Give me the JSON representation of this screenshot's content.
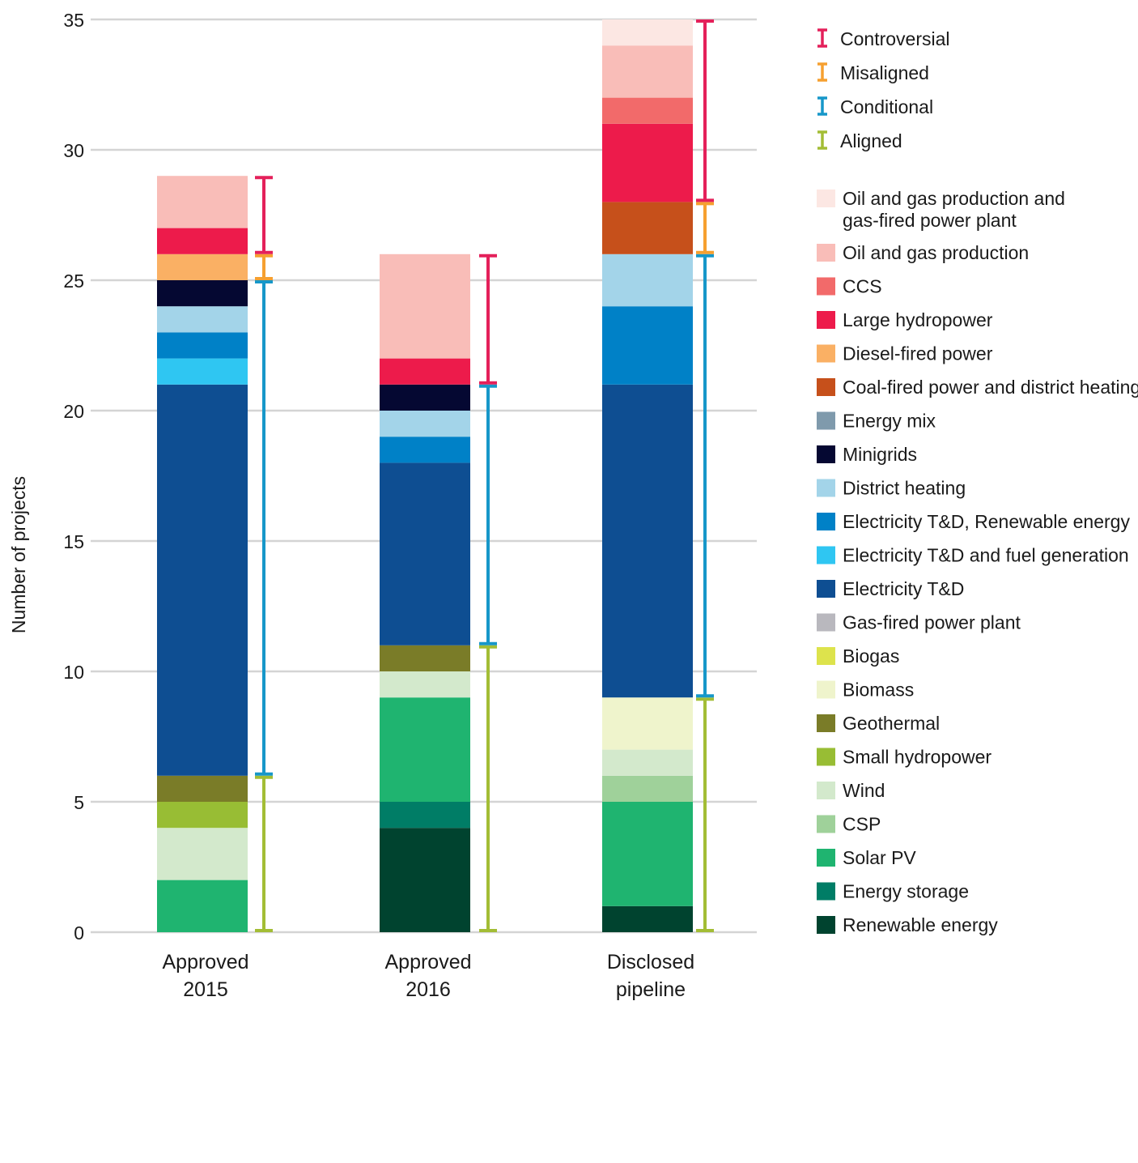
{
  "chart_data": {
    "type": "bar",
    "stacked": true,
    "title": "",
    "xlabel": "",
    "ylabel": "Number of projects",
    "ylim": [
      0,
      35
    ],
    "yticks": [
      0,
      5,
      10,
      15,
      20,
      25,
      30,
      35
    ],
    "grid": true,
    "legend_position": "right",
    "categories": [
      [
        "Approved",
        "2015"
      ],
      [
        "Approved",
        "2016"
      ],
      [
        "Disclosed",
        "pipeline"
      ]
    ],
    "series": [
      {
        "name": "Renewable energy",
        "color": "#00432f",
        "values": [
          0,
          4,
          1
        ]
      },
      {
        "name": "Energy storage",
        "color": "#007d66",
        "values": [
          0,
          1,
          0
        ]
      },
      {
        "name": "Solar PV",
        "color": "#1fb470",
        "values": [
          2,
          4,
          4
        ]
      },
      {
        "name": "CSP",
        "color": "#9fd19a",
        "values": [
          0,
          0,
          1
        ]
      },
      {
        "name": "Wind",
        "color": "#d3e9cc",
        "values": [
          2,
          1,
          1
        ]
      },
      {
        "name": "Small hydropower",
        "color": "#98bd34",
        "values": [
          1,
          0,
          0
        ]
      },
      {
        "name": "Geothermal",
        "color": "#7a7c28",
        "values": [
          1,
          1,
          0
        ]
      },
      {
        "name": "Biomass",
        "color": "#eff4cc",
        "values": [
          0,
          0,
          2
        ]
      },
      {
        "name": "Biogas",
        "color": "#dde34c",
        "values": [
          0,
          0,
          0
        ]
      },
      {
        "name": "Gas-fired power plant",
        "color": "#b9b8be",
        "values": [
          0,
          0,
          0
        ]
      },
      {
        "name": "Electricity T&D",
        "color": "#0e4e92",
        "values": [
          15,
          7,
          12
        ]
      },
      {
        "name": "Electricity T&D and fuel generation",
        "color": "#2fc6f2",
        "values": [
          1,
          0,
          0
        ]
      },
      {
        "name": "Electricity T&D, Renewable energy",
        "color": "#0081c7",
        "values": [
          1,
          1,
          3
        ]
      },
      {
        "name": "District heating",
        "color": "#a3d4e9",
        "values": [
          1,
          1,
          2
        ]
      },
      {
        "name": "Minigrids",
        "color": "#050832",
        "values": [
          1,
          1,
          0
        ]
      },
      {
        "name": "Energy mix",
        "color": "#7f9aac",
        "values": [
          0,
          0,
          0
        ]
      },
      {
        "name": "Coal-fired power and district heating",
        "color": "#c6501b",
        "values": [
          0,
          0,
          2
        ]
      },
      {
        "name": "Diesel-fired power",
        "color": "#fab064",
        "values": [
          1,
          0,
          0
        ]
      },
      {
        "name": "Large hydropower",
        "color": "#ed1b4b",
        "values": [
          1,
          1,
          3
        ]
      },
      {
        "name": "CCS",
        "color": "#f26a6a",
        "values": [
          0,
          0,
          1
        ]
      },
      {
        "name": "Oil and gas production",
        "color": "#f9bdb8",
        "values": [
          2,
          4,
          2
        ]
      },
      {
        "name": "Oil and gas production and gas-fired power plant",
        "color": "#fce7e3",
        "values": [
          0,
          0,
          1
        ]
      }
    ],
    "alignment_ranges": [
      {
        "name": "Aligned",
        "color": "#a3bd35",
        "ranges": [
          [
            0,
            6
          ],
          [
            0,
            11
          ],
          [
            0,
            9
          ]
        ]
      },
      {
        "name": "Conditional",
        "color": "#1797c9",
        "ranges": [
          [
            6,
            25
          ],
          [
            11,
            21
          ],
          [
            9,
            26
          ]
        ]
      },
      {
        "name": "Misaligned",
        "color": "#f6a030",
        "ranges": [
          [
            25,
            26
          ],
          null,
          [
            26,
            28
          ]
        ]
      },
      {
        "name": "Controversial",
        "color": "#e4205a",
        "ranges": [
          [
            26,
            29
          ],
          [
            21,
            26
          ],
          [
            28,
            35
          ]
        ]
      }
    ],
    "legend_ranges": [
      "Controversial",
      "Misaligned",
      "Conditional",
      "Aligned"
    ],
    "legend_series": [
      {
        "label": [
          "Oil and gas production and",
          "gas-fired power plant"
        ],
        "color": "#fce7e3"
      },
      {
        "label": [
          "Oil and gas production"
        ],
        "color": "#f9bdb8"
      },
      {
        "label": [
          "CCS"
        ],
        "color": "#f26a6a"
      },
      {
        "label": [
          "Large hydropower"
        ],
        "color": "#ed1b4b"
      },
      {
        "label": [
          "Diesel-fired power"
        ],
        "color": "#fab064"
      },
      {
        "label": [
          "Coal-fired power and district heating"
        ],
        "color": "#c6501b"
      },
      {
        "label": [
          "Energy mix"
        ],
        "color": "#7f9aac"
      },
      {
        "label": [
          "Minigrids"
        ],
        "color": "#050832"
      },
      {
        "label": [
          "District heating"
        ],
        "color": "#a3d4e9"
      },
      {
        "label": [
          "Electricity T&D, Renewable energy"
        ],
        "color": "#0081c7"
      },
      {
        "label": [
          "Electricity T&D and fuel generation"
        ],
        "color": "#2fc6f2"
      },
      {
        "label": [
          "Electricity T&D"
        ],
        "color": "#0e4e92"
      },
      {
        "label": [
          "Gas-fired power plant"
        ],
        "color": "#b9b8be"
      },
      {
        "label": [
          "Biogas"
        ],
        "color": "#dde34c"
      },
      {
        "label": [
          "Biomass"
        ],
        "color": "#eff4cc"
      },
      {
        "label": [
          "Geothermal"
        ],
        "color": "#7a7c28"
      },
      {
        "label": [
          "Small hydropower"
        ],
        "color": "#98bd34"
      },
      {
        "label": [
          "Wind"
        ],
        "color": "#d3e9cc"
      },
      {
        "label": [
          "CSP"
        ],
        "color": "#9fd19a"
      },
      {
        "label": [
          "Solar PV"
        ],
        "color": "#1fb470"
      },
      {
        "label": [
          "Energy storage"
        ],
        "color": "#007d66"
      },
      {
        "label": [
          "Renewable energy"
        ],
        "color": "#00432f"
      }
    ]
  }
}
